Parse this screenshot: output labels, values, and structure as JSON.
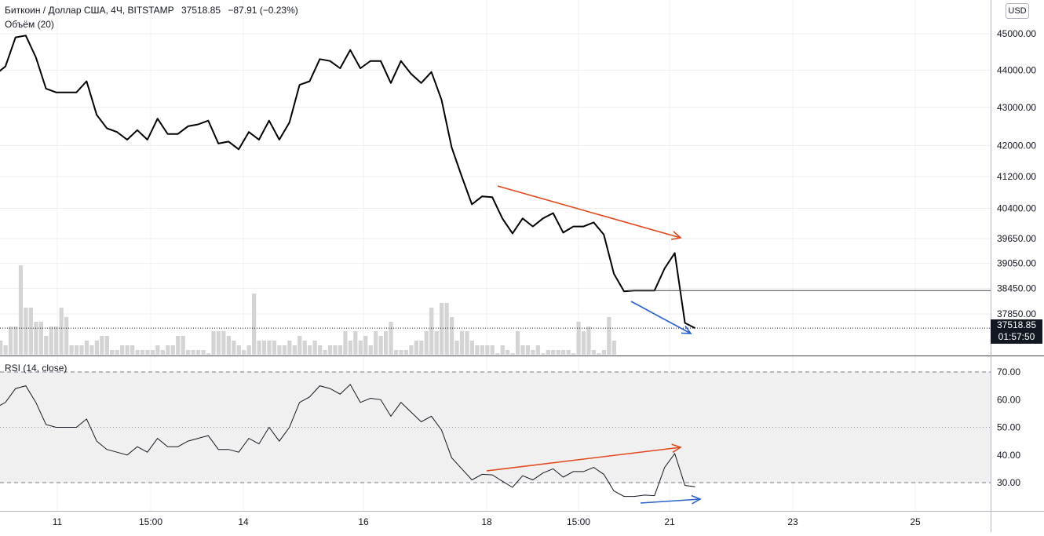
{
  "header": {
    "symbol": "Биткоин / Доллар США, 4Ч, BITSTAMP",
    "last": "37518.85",
    "change": "−87.91 (−0.23%)",
    "volume_label": "Объём (20)",
    "currency": "USD"
  },
  "price_tag": {
    "price": "37518.85",
    "countdown": "01:57:50"
  },
  "rsi_label": "RSI (14, close)",
  "colors": {
    "line": "#000000",
    "bear_arrow": "#e2481f",
    "bull_arrow": "#2962c9",
    "volume": "#d4d4d4",
    "rsi_band": "#f0f0f0"
  },
  "chart_data": [
    {
      "type": "line",
      "name": "price",
      "x_ticks": [
        "11",
        "15:00",
        "14",
        "16",
        "18",
        "15:00",
        "21",
        "23",
        "25"
      ],
      "y_ticks": [
        "45000.00",
        "44000.00",
        "43000.00",
        "42000.00",
        "41200.00",
        "40400.00",
        "39650.00",
        "39050.00",
        "38450.00",
        "37850.00"
      ],
      "y_scale": "log",
      "ylim": [
        37200,
        45800
      ],
      "values": [
        43880,
        44100,
        44900,
        44950,
        44350,
        43500,
        43400,
        43400,
        43400,
        43700,
        42800,
        42450,
        42350,
        42150,
        42400,
        42150,
        42700,
        42300,
        42300,
        42500,
        42550,
        42650,
        42050,
        42100,
        41900,
        42350,
        42150,
        42650,
        42150,
        42600,
        43600,
        43700,
        44300,
        44250,
        44050,
        44550,
        44050,
        44250,
        44250,
        43650,
        44250,
        43900,
        43650,
        43950,
        43200,
        41950,
        41200,
        40500,
        40700,
        40680,
        40150,
        39780,
        40150,
        39950,
        40150,
        40280,
        39800,
        39950,
        39950,
        40050,
        39750,
        38800,
        38380,
        38400,
        38400,
        38400,
        38930,
        39300,
        37640,
        37518.85
      ],
      "horizontal_line": 38400,
      "last_price_line": 37518.85
    },
    {
      "type": "bar",
      "name": "volume",
      "values": [
        3,
        2,
        6,
        6,
        19,
        10,
        10,
        7,
        7,
        4,
        6,
        6,
        10,
        8,
        2,
        2,
        2,
        3,
        2,
        3,
        4,
        4,
        1,
        1,
        2,
        2,
        2,
        1,
        1,
        1,
        1,
        2,
        1,
        2,
        2,
        4,
        4,
        1,
        1,
        1,
        1,
        0,
        5,
        5,
        5,
        4,
        3,
        2,
        1,
        2,
        13,
        3,
        3,
        3,
        3,
        2,
        2,
        3,
        2,
        4,
        3,
        2,
        3,
        2,
        1,
        2,
        2,
        2,
        5,
        3,
        5,
        3,
        4,
        2,
        5,
        4,
        5,
        7,
        1,
        1,
        1,
        2,
        3,
        3,
        5,
        10,
        5,
        11,
        11,
        8,
        3,
        5,
        5,
        3,
        2,
        2,
        2,
        2,
        0,
        2,
        1,
        0,
        5,
        2,
        2,
        1,
        2,
        0,
        1,
        1,
        1,
        1,
        1,
        0,
        7,
        5,
        6,
        1,
        0,
        1,
        8,
        3
      ]
    },
    {
      "type": "line",
      "name": "rsi",
      "y_ticks": [
        "70.00",
        "60.00",
        "50.00",
        "40.00",
        "30.00"
      ],
      "ylim": [
        20,
        73
      ],
      "band": [
        30,
        70
      ],
      "midline": 50,
      "values": [
        57,
        59,
        64,
        65,
        59,
        51,
        50,
        50,
        50,
        53,
        45,
        42,
        41,
        40,
        43,
        41,
        46,
        43,
        43,
        45,
        46,
        47,
        42,
        42,
        41,
        46,
        44,
        50,
        45,
        50,
        59,
        61,
        65,
        64,
        62,
        65.5,
        59,
        60.5,
        60,
        54,
        59,
        55.5,
        52,
        54,
        49,
        39,
        35,
        31,
        33,
        32.8,
        30.5,
        28.3,
        32.5,
        31,
        33.5,
        35,
        32,
        34,
        34,
        35.5,
        33,
        27,
        25,
        25,
        25.5,
        25.3,
        35.5,
        40.5,
        29,
        28.5
      ]
    }
  ]
}
